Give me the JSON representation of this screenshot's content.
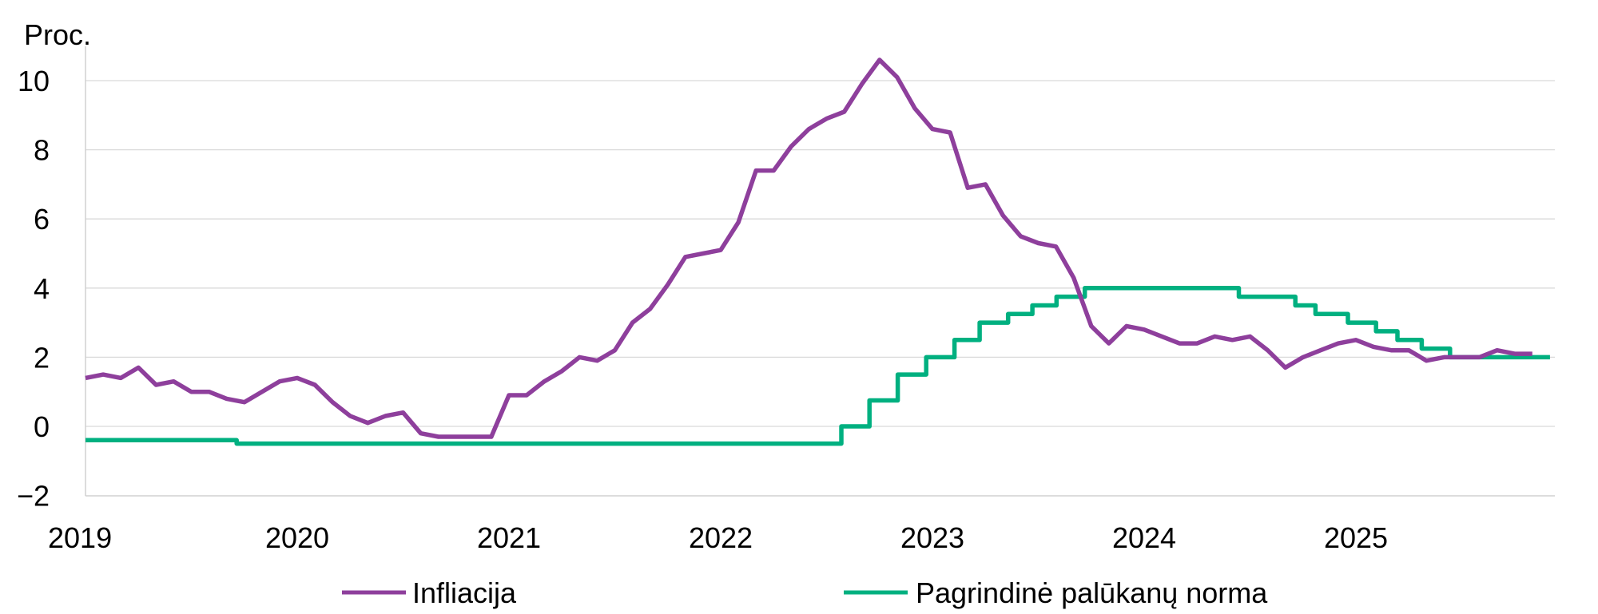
{
  "chart_data": {
    "type": "line",
    "ylabel": "Proc.",
    "ylim": [
      -2,
      10.6
    ],
    "yticks": [
      "10",
      "8",
      "6",
      "4",
      "2",
      "0",
      "−2"
    ],
    "ytick_values": [
      10,
      8,
      6,
      4,
      2,
      0,
      -2
    ],
    "xlim": [
      "2019-01",
      "2025-12"
    ],
    "xticks": [
      "2019",
      "2020",
      "2021",
      "2022",
      "2023",
      "2024",
      "2025"
    ],
    "grid": true,
    "legend_position": "bottom",
    "series": [
      {
        "name": "Infliacija",
        "color": "#8E3F9C",
        "x": [
          "2019-01",
          "2019-02",
          "2019-03",
          "2019-04",
          "2019-05",
          "2019-06",
          "2019-07",
          "2019-08",
          "2019-09",
          "2019-10",
          "2019-11",
          "2019-12",
          "2020-01",
          "2020-02",
          "2020-03",
          "2020-04",
          "2020-05",
          "2020-06",
          "2020-07",
          "2020-08",
          "2020-09",
          "2020-10",
          "2020-11",
          "2020-12",
          "2021-01",
          "2021-02",
          "2021-03",
          "2021-04",
          "2021-05",
          "2021-06",
          "2021-07",
          "2021-08",
          "2021-09",
          "2021-10",
          "2021-11",
          "2021-12",
          "2022-01",
          "2022-02",
          "2022-03",
          "2022-04",
          "2022-05",
          "2022-06",
          "2022-07",
          "2022-08",
          "2022-09",
          "2022-10",
          "2022-11",
          "2022-12",
          "2023-01",
          "2023-02",
          "2023-03",
          "2023-04",
          "2023-05",
          "2023-06",
          "2023-07",
          "2023-08",
          "2023-09",
          "2023-10",
          "2023-11",
          "2023-12",
          "2024-01",
          "2024-02",
          "2024-03",
          "2024-04",
          "2024-05",
          "2024-06",
          "2024-07",
          "2024-08",
          "2024-09",
          "2024-10",
          "2024-11",
          "2024-12",
          "2025-01",
          "2025-02",
          "2025-03",
          "2025-04",
          "2025-05",
          "2025-06",
          "2025-07",
          "2025-08",
          "2025-09",
          "2025-10",
          "2025-11"
        ],
        "y": [
          1.4,
          1.5,
          1.4,
          1.7,
          1.2,
          1.3,
          1.0,
          1.0,
          0.8,
          0.7,
          1.0,
          1.3,
          1.4,
          1.2,
          0.7,
          0.3,
          0.1,
          0.3,
          0.4,
          -0.2,
          -0.3,
          -0.3,
          -0.3,
          -0.3,
          0.9,
          0.9,
          1.3,
          1.6,
          2.0,
          1.9,
          2.2,
          3.0,
          3.4,
          4.1,
          4.9,
          5.0,
          5.1,
          5.9,
          7.4,
          7.4,
          8.1,
          8.6,
          8.9,
          9.1,
          9.9,
          10.6,
          10.1,
          9.2,
          8.6,
          8.5,
          6.9,
          7.0,
          6.1,
          5.5,
          5.3,
          5.2,
          4.3,
          2.9,
          2.4,
          2.9,
          2.8,
          2.6,
          2.4,
          2.4,
          2.6,
          2.5,
          2.6,
          2.2,
          1.7,
          2.0,
          2.2,
          2.4,
          2.5,
          2.3,
          2.2,
          2.2,
          1.9,
          2.0,
          2.0,
          2.0,
          2.2,
          2.1,
          2.1
        ]
      },
      {
        "name": "Pagrindinė palūkanų norma",
        "color": "#00B080",
        "x": [
          "2019-01",
          "2019-09-18",
          "2022-07-27",
          "2022-09-14",
          "2022-11-02",
          "2022-12-21",
          "2023-02-08",
          "2023-03-22",
          "2023-05-10",
          "2023-06-21",
          "2023-08-02",
          "2023-09-20",
          "2024-06-12",
          "2024-09-18",
          "2024-10-23",
          "2024-12-18",
          "2025-02-05",
          "2025-03-12",
          "2025-04-23",
          "2025-06-11",
          "2025-12"
        ],
        "y": [
          -0.4,
          -0.5,
          0.0,
          0.75,
          1.5,
          2.0,
          2.5,
          3.0,
          3.25,
          3.5,
          3.75,
          4.0,
          3.75,
          3.5,
          3.25,
          3.0,
          2.75,
          2.5,
          2.25,
          2.0,
          2.0
        ],
        "step": "post"
      }
    ]
  }
}
